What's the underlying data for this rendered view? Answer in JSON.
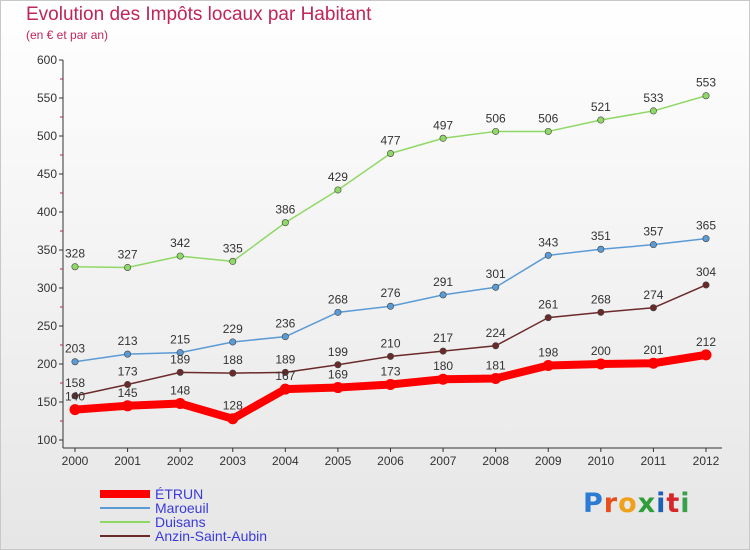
{
  "title": "Evolution des Impôts locaux par Habitant",
  "subtitle": "(en € et par an)",
  "logo": {
    "text": "Proxiti",
    "colors": [
      "#2b7bd4",
      "#e84e1b",
      "#f0a11c",
      "#2f9e3a",
      "#1e5fb3",
      "#d7262a",
      "#37a04b"
    ]
  },
  "chart_data": {
    "type": "line",
    "x": [
      "2000",
      "2001",
      "2002",
      "2003",
      "2004",
      "2005",
      "2006",
      "2007",
      "2008",
      "2009",
      "2010",
      "2011",
      "2012"
    ],
    "ylim": [
      100,
      600
    ],
    "yticks": [
      100,
      150,
      200,
      250,
      300,
      350,
      400,
      450,
      500,
      550,
      600
    ],
    "grid": false,
    "legend_position": "bottom-left",
    "series": [
      {
        "name": "ÉTRUN",
        "color": "#ff0000",
        "width": 8,
        "values": [
          140,
          145,
          148,
          128,
          167,
          169,
          173,
          180,
          181,
          198,
          200,
          201,
          212
        ]
      },
      {
        "name": "Maroeuil",
        "color": "#5b9bd5",
        "width": 1.5,
        "values": [
          203,
          213,
          215,
          229,
          236,
          268,
          276,
          291,
          301,
          343,
          351,
          357,
          365
        ]
      },
      {
        "name": "Duisans",
        "color": "#8fd866",
        "width": 1.5,
        "values": [
          328,
          327,
          342,
          335,
          386,
          429,
          477,
          497,
          506,
          506,
          521,
          533,
          553
        ]
      },
      {
        "name": "Anzin-Saint-Aubin",
        "color": "#6b2a2a",
        "width": 1.5,
        "values": [
          158,
          173,
          189,
          188,
          189,
          199,
          210,
          217,
          224,
          261,
          268,
          274,
          304
        ]
      }
    ]
  }
}
